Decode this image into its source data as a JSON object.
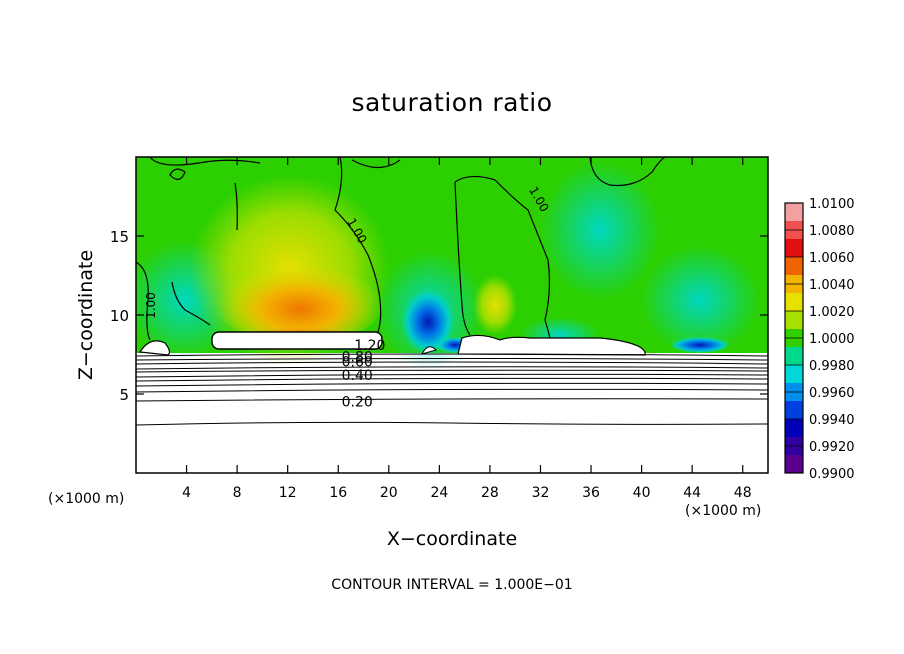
{
  "chart_data": {
    "type": "heatmap",
    "title": "saturation ratio",
    "xlabel": "X−coordinate",
    "ylabel": "Z−coordinate",
    "x_unit_left": "(×1000 m)",
    "x_unit_right": "(×1000 m)",
    "xlim": [
      0,
      50
    ],
    "ylim": [
      0,
      20
    ],
    "x_ticks": [
      4,
      8,
      12,
      16,
      20,
      24,
      28,
      32,
      36,
      40,
      44,
      48
    ],
    "y_ticks": [
      5,
      10,
      15
    ],
    "colorbar": {
      "labels": [
        "1.0100",
        "1.0080",
        "1.0060",
        "1.0040",
        "1.0020",
        "1.0000",
        "0.9980",
        "0.9960",
        "0.9940",
        "0.9920",
        "0.9900"
      ],
      "colors": [
        "#f2a0a0",
        "#f05050",
        "#e01010",
        "#f06400",
        "#f2b400",
        "#e8e000",
        "#a8e000",
        "#30d000",
        "#00d88c",
        "#00d8d8",
        "#0090f0",
        "#0040e0",
        "#0000b8",
        "#3000a0",
        "#5a0090"
      ]
    },
    "contour_labels": [
      {
        "text": "1.20",
        "x": 18.5,
        "y": 7.8
      },
      {
        "text": "0.80",
        "x": 17.5,
        "y": 7.05
      },
      {
        "text": "0.60",
        "x": 17.5,
        "y": 6.75
      },
      {
        "text": "0.40",
        "x": 17.5,
        "y": 5.9
      },
      {
        "text": "0.20",
        "x": 17.5,
        "y": 4.2
      },
      {
        "text": "1.00",
        "x": 17.2,
        "y": 15.2
      },
      {
        "text": "1.00",
        "x": 31.6,
        "y": 17.2
      },
      {
        "text": "1.00",
        "x": 1.5,
        "y": 10.6
      }
    ],
    "contour_interval": "CONTOUR INTERVAL = 1.000E−01"
  }
}
